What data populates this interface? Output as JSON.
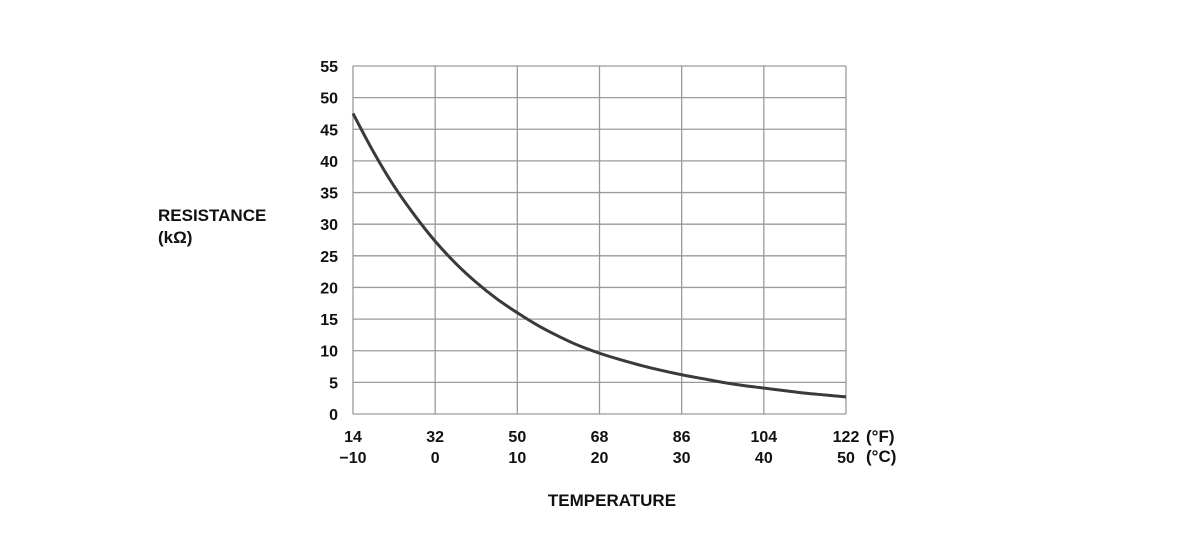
{
  "chart_data": {
    "type": "line",
    "title": "",
    "ylabel": [
      "RESISTANCE",
      "(kΩ)"
    ],
    "xlabel": "TEMPERATURE",
    "ylim": [
      0,
      55
    ],
    "y_ticks": [
      0,
      5,
      10,
      15,
      20,
      25,
      30,
      35,
      40,
      45,
      50,
      55
    ],
    "x_ticks_c": [
      -10,
      0,
      10,
      20,
      30,
      40,
      50
    ],
    "x_ticks_f": [
      "14",
      "32",
      "50",
      "68",
      "86",
      "104",
      "122"
    ],
    "x_ticks_c_labels": [
      "−10",
      "0",
      "10",
      "20",
      "30",
      "40",
      "50"
    ],
    "x_unit_f": "(°F)",
    "x_unit_c": "(°C)",
    "xlim_c": [
      -10,
      50
    ],
    "grid": true,
    "series": [
      {
        "x_c": [
          -10,
          -7.5,
          -5,
          -2.5,
          0,
          2.5,
          5,
          7.5,
          10,
          12.5,
          15,
          17.5,
          20,
          22.5,
          25,
          27.5,
          30,
          32.5,
          35,
          37.5,
          40,
          42.5,
          45,
          47.5,
          50
        ],
        "y_kohm": [
          47.5,
          41.4,
          36.0,
          31.4,
          27.3,
          23.8,
          20.8,
          18.2,
          16.0,
          14.0,
          12.3,
          10.8,
          9.6,
          8.6,
          7.7,
          6.9,
          6.2,
          5.6,
          5.0,
          4.5,
          4.1,
          3.7,
          3.3,
          3.0,
          2.7
        ]
      }
    ]
  },
  "colors": {
    "grid": "#9a9a9a",
    "curve": "#3a3a3a",
    "text": "#111111"
  }
}
